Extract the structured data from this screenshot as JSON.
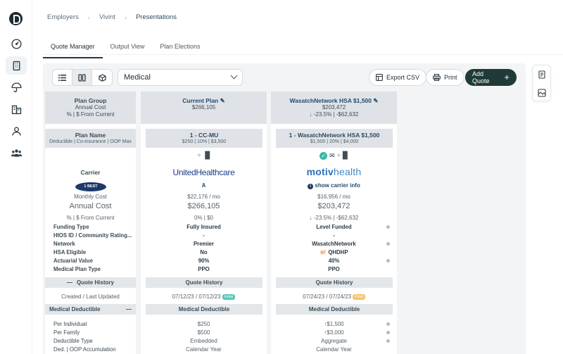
{
  "nav": {
    "breadcrumb": [
      "Employers",
      "Vivint",
      "Presentations"
    ],
    "tabs": [
      "Quote Manager",
      "Output View",
      "Plan Elections"
    ]
  },
  "toolbar": {
    "category": "Medical",
    "export_label": "Export CSV",
    "print_label": "Print",
    "add_quote_label": "Add Quote"
  },
  "labels": {
    "plan_group": "Plan Group",
    "annual_cost": "Annual Cost",
    "pct_from_current": "% | $ From Current",
    "plan_name": "Plan Name",
    "plan_name_sub": "Deductible | Co-insurance | OOP Max",
    "carrier": "Carrier",
    "carrier_logo_text": "1 BEST",
    "monthly_cost": "Monthly Cost",
    "annual_cost_big": "Annual Cost",
    "pct_from_current_2": "% | $ From Current",
    "funding_type": "Funding Type",
    "hios_id": "HIOS ID / Community Rating...",
    "network": "Network",
    "hsa_eligible": "HSA Eligible",
    "actuarial_value": "Actuarial Value",
    "medical_plan_type": "Medical Plan Type",
    "quote_history": "Quote History",
    "created_last_updated": "Created / Last Updated",
    "medical_deductible": "Medical Deductible",
    "per_individual": "Per Individual",
    "per_family": "Per Family",
    "deductible_type": "Deductible Type",
    "ded_oop_accum": "Ded. | OOP Accumulation"
  },
  "current_plan": {
    "title": "Current Plan",
    "annual": "$266,105",
    "plan_name": "1 - CC-MU",
    "plan_sub": "$250 | 10% | $3,500",
    "carrier": "UnitedHealthcare",
    "rating": "A",
    "monthly": "$22,176 / mo",
    "annual_big": "$266,105",
    "pct": "0% | $0",
    "funding_type": "Fully Insured",
    "hios": "-",
    "network": "Premier",
    "hsa": "No",
    "actuarial": "90%",
    "plan_type": "PPO",
    "quote_history": "Quote History",
    "dates": "07/12/23 / 07/12/23",
    "badge": "Initial",
    "medical_deductible": "Medical Deductible",
    "per_individual": "$250",
    "per_family": "$500",
    "deductible_type": "Embedded",
    "accumulation": "Calendar Year"
  },
  "quote_plan": {
    "title": "WasatchNetwork HSA $1,500",
    "annual": "$203,472",
    "change": "-23.5% | -$62,632",
    "plan_name": "1 - WasatchNetwork HSA $1,500",
    "plan_sub": "$1,500 | 20% | $4,000",
    "carrier_main": "motiv",
    "carrier_suffix": "health",
    "carrier_info": "show carrier info",
    "monthly": "$16,956 / mo",
    "annual_big": "$203,472",
    "pct": "-23.5% | -$62,632",
    "funding_type": "Level Funded",
    "hios": "-",
    "network": "WasatchNetwork",
    "hsa": "QHDHP",
    "actuarial": "40%",
    "plan_type": "PPO",
    "quote_history": "Quote History",
    "dates": "07/24/23 / 07/24/23",
    "badge": "Final",
    "medical_deductible": "Medical Deductible",
    "per_individual": "$1,500",
    "per_family": "$3,000",
    "deductible_type": "Aggregate",
    "accumulation": "Calendar Year"
  }
}
